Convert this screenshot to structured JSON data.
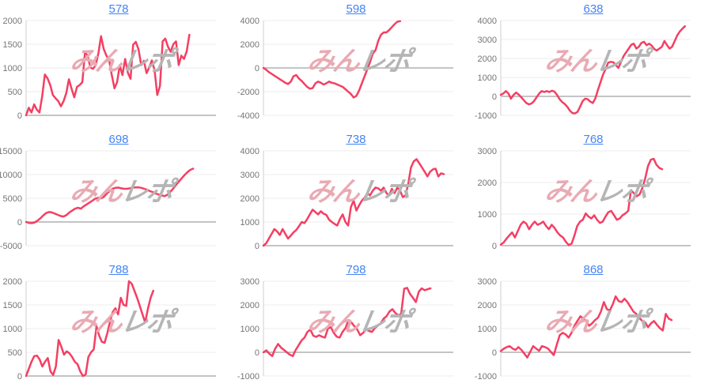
{
  "page": {
    "background": "#ffffff"
  },
  "style": {
    "line_color": "#f43f63",
    "grid_color": "#ececec",
    "zero_line_color": "#c4c4c4",
    "axis_line_color": "#cfcfcf",
    "tick_label_color": "#757575",
    "link_color": "#4484f3"
  },
  "watermark": {
    "text_pink": "みん",
    "text_gray": "レポ",
    "pink_color": "#e9aab3",
    "gray_color": "#b5b5b5"
  },
  "chart_data": [
    {
      "type": "line",
      "title": "578",
      "xlabel": "",
      "ylabel": "",
      "ylim": [
        0,
        2000
      ],
      "yticks": [
        0,
        500,
        1000,
        1500,
        2000
      ],
      "grid": true,
      "legend": false,
      "x_span": 0.86,
      "values": [
        0,
        160,
        60,
        230,
        120,
        60,
        400,
        860,
        780,
        640,
        430,
        360,
        300,
        190,
        300,
        470,
        760,
        560,
        380,
        600,
        640,
        700,
        1330,
        1260,
        1010,
        980,
        1060,
        1310,
        1670,
        1400,
        1260,
        1170,
        850,
        570,
        700,
        1060,
        850,
        1190,
        900,
        770,
        1490,
        1550,
        1390,
        1060,
        1150,
        890,
        1010,
        1160,
        950,
        430,
        620,
        1560,
        1620,
        1450,
        1340,
        1500,
        1560,
        1060,
        1260,
        1190,
        1350,
        1700
      ]
    },
    {
      "type": "line",
      "title": "598",
      "xlabel": "",
      "ylabel": "",
      "ylim": [
        -4000,
        4000
      ],
      "yticks": [
        -4000,
        -2000,
        0,
        2000,
        4000
      ],
      "grid": true,
      "legend": false,
      "x_span": 0.72,
      "values": [
        0,
        -150,
        -350,
        -500,
        -650,
        -800,
        -950,
        -1100,
        -1250,
        -1350,
        -1150,
        -700,
        -600,
        -900,
        -1100,
        -1350,
        -1600,
        -1750,
        -1700,
        -1300,
        -1150,
        -1250,
        -1400,
        -1300,
        -1150,
        -1250,
        -1300,
        -1400,
        -1500,
        -1600,
        -1800,
        -2000,
        -2200,
        -2500,
        -2350,
        -1900,
        -1300,
        -700,
        -100,
        500,
        1200,
        1500,
        2300,
        2800,
        3000,
        3000,
        3200,
        3450,
        3700,
        3900,
        3950
      ]
    },
    {
      "type": "line",
      "title": "638",
      "xlabel": "",
      "ylabel": "",
      "ylim": [
        -1000,
        4000
      ],
      "yticks": [
        -1000,
        0,
        1000,
        2000,
        3000,
        4000
      ],
      "grid": true,
      "legend": false,
      "x_span": 0.97,
      "values": [
        80,
        150,
        280,
        150,
        -120,
        80,
        200,
        100,
        -50,
        -200,
        -350,
        -420,
        -380,
        -250,
        -50,
        150,
        280,
        230,
        280,
        230,
        300,
        250,
        80,
        -150,
        -300,
        -400,
        -550,
        -750,
        -880,
        -900,
        -820,
        -550,
        -250,
        -120,
        -150,
        -280,
        -350,
        -100,
        350,
        750,
        1150,
        1450,
        1780,
        1820,
        1800,
        1650,
        1500,
        1820,
        2120,
        2320,
        2520,
        2720,
        2780,
        2520,
        2620,
        2820,
        2880,
        2700,
        2780,
        2680,
        2500,
        2420,
        2520,
        2620,
        2920,
        2700,
        2520,
        2620,
        2920,
        3220,
        3420,
        3570,
        3700
      ]
    },
    {
      "type": "line",
      "title": "698",
      "xlabel": "",
      "ylabel": "",
      "ylim": [
        -5000,
        15000
      ],
      "yticks": [
        -5000,
        0,
        5000,
        10000,
        15000
      ],
      "grid": true,
      "legend": false,
      "x_span": 0.88,
      "values": [
        0,
        -200,
        -250,
        -100,
        300,
        800,
        1400,
        1900,
        2100,
        2000,
        1750,
        1500,
        1250,
        1150,
        1450,
        2000,
        2400,
        2800,
        3000,
        2800,
        3300,
        3700,
        4100,
        4500,
        4900,
        5100,
        5000,
        5300,
        6000,
        6500,
        7000,
        7200,
        7250,
        7100,
        7000,
        7000,
        7100,
        7250,
        7300,
        7300,
        7200,
        7000,
        6800,
        6500,
        6300,
        6000,
        5800,
        5600,
        5450,
        5700,
        6300,
        7000,
        7800,
        8500,
        9200,
        9900,
        10500,
        11000,
        11250
      ]
    },
    {
      "type": "line",
      "title": "738",
      "xlabel": "",
      "ylabel": "",
      "ylim": [
        0,
        4000
      ],
      "yticks": [
        0,
        1000,
        2000,
        3000,
        4000
      ],
      "grid": true,
      "legend": false,
      "x_span": 0.95,
      "values": [
        0,
        100,
        300,
        500,
        700,
        600,
        450,
        700,
        500,
        300,
        420,
        560,
        660,
        820,
        1000,
        950,
        1120,
        1320,
        1520,
        1420,
        1320,
        1450,
        1350,
        1300,
        1100,
        1000,
        920,
        850,
        1120,
        1320,
        1000,
        850,
        1620,
        1900,
        1480,
        1700,
        1900,
        2020,
        2220,
        2120,
        2320,
        2450,
        2420,
        2320,
        2450,
        2220,
        2120,
        2400,
        2220,
        2450,
        2320,
        2050,
        2120,
        2620,
        3300,
        3560,
        3650,
        3480,
        3300,
        3120,
        2920,
        3120,
        3220,
        3250,
        2920,
        3050,
        3020
      ]
    },
    {
      "type": "line",
      "title": "768",
      "xlabel": "",
      "ylabel": "",
      "ylim": [
        0,
        3000
      ],
      "yticks": [
        0,
        1000,
        2000,
        3000
      ],
      "grid": true,
      "legend": false,
      "x_span": 0.85,
      "values": [
        30,
        100,
        220,
        320,
        420,
        260,
        460,
        660,
        760,
        700,
        520,
        660,
        760,
        660,
        700,
        760,
        620,
        520,
        660,
        560,
        420,
        320,
        260,
        120,
        20,
        60,
        320,
        620,
        760,
        820,
        1020,
        920,
        860,
        960,
        820,
        720,
        760,
        920,
        1060,
        1100,
        960,
        820,
        860,
        960,
        1020,
        1100,
        1760,
        1660,
        1560,
        1620,
        1820,
        2120,
        2520,
        2720,
        2750,
        2560,
        2460,
        2420
      ]
    },
    {
      "type": "line",
      "title": "788",
      "xlabel": "",
      "ylabel": "",
      "ylim": [
        0,
        2000
      ],
      "yticks": [
        0,
        500,
        1000,
        1500,
        2000
      ],
      "grid": true,
      "legend": false,
      "x_span": 0.67,
      "values": [
        0,
        150,
        300,
        420,
        430,
        350,
        200,
        300,
        380,
        100,
        20,
        200,
        760,
        620,
        450,
        520,
        480,
        400,
        300,
        250,
        100,
        0,
        30,
        400,
        500,
        560,
        1050,
        850,
        720,
        700,
        900,
        1150,
        1350,
        1430,
        1300,
        1650,
        1500,
        1480,
        2000,
        1950,
        1800,
        1650,
        1480,
        1300,
        1130,
        1420,
        1650,
        1800
      ]
    },
    {
      "type": "line",
      "title": "798",
      "xlabel": "",
      "ylabel": "",
      "ylim": [
        -1000,
        3000
      ],
      "yticks": [
        -1000,
        0,
        1000,
        2000,
        3000
      ],
      "grid": true,
      "legend": false,
      "x_span": 0.88,
      "values": [
        0,
        80,
        -60,
        -160,
        150,
        350,
        200,
        100,
        0,
        -100,
        -160,
        100,
        300,
        500,
        620,
        860,
        960,
        700,
        650,
        720,
        660,
        620,
        1000,
        1060,
        820,
        660,
        620,
        860,
        1020,
        1360,
        1260,
        1100,
        960,
        720,
        820,
        960,
        900,
        860,
        1020,
        1120,
        1220,
        1420,
        1520,
        1720,
        1820,
        1660,
        1560,
        1620,
        2680,
        2720,
        2460,
        2300,
        2120,
        2560,
        2700,
        2620,
        2660,
        2700
      ]
    },
    {
      "type": "line",
      "title": "868",
      "xlabel": "",
      "ylabel": "",
      "ylim": [
        -1000,
        3000
      ],
      "yticks": [
        -1000,
        0,
        1000,
        2000,
        3000
      ],
      "grid": true,
      "legend": false,
      "x_span": 0.9,
      "values": [
        50,
        150,
        220,
        260,
        160,
        100,
        220,
        100,
        -60,
        -220,
        20,
        260,
        160,
        60,
        260,
        220,
        160,
        20,
        -120,
        320,
        720,
        820,
        760,
        620,
        820,
        1120,
        1320,
        1520,
        1420,
        1320,
        1120,
        1220,
        1360,
        1460,
        1720,
        2120,
        1820,
        1760,
        2020,
        2360,
        2160,
        2120,
        2260,
        2120,
        1920,
        1720,
        1620,
        1460,
        1320,
        1260,
        1060,
        1220,
        1320,
        1160,
        1020,
        920,
        1620,
        1420,
        1360
      ]
    }
  ]
}
